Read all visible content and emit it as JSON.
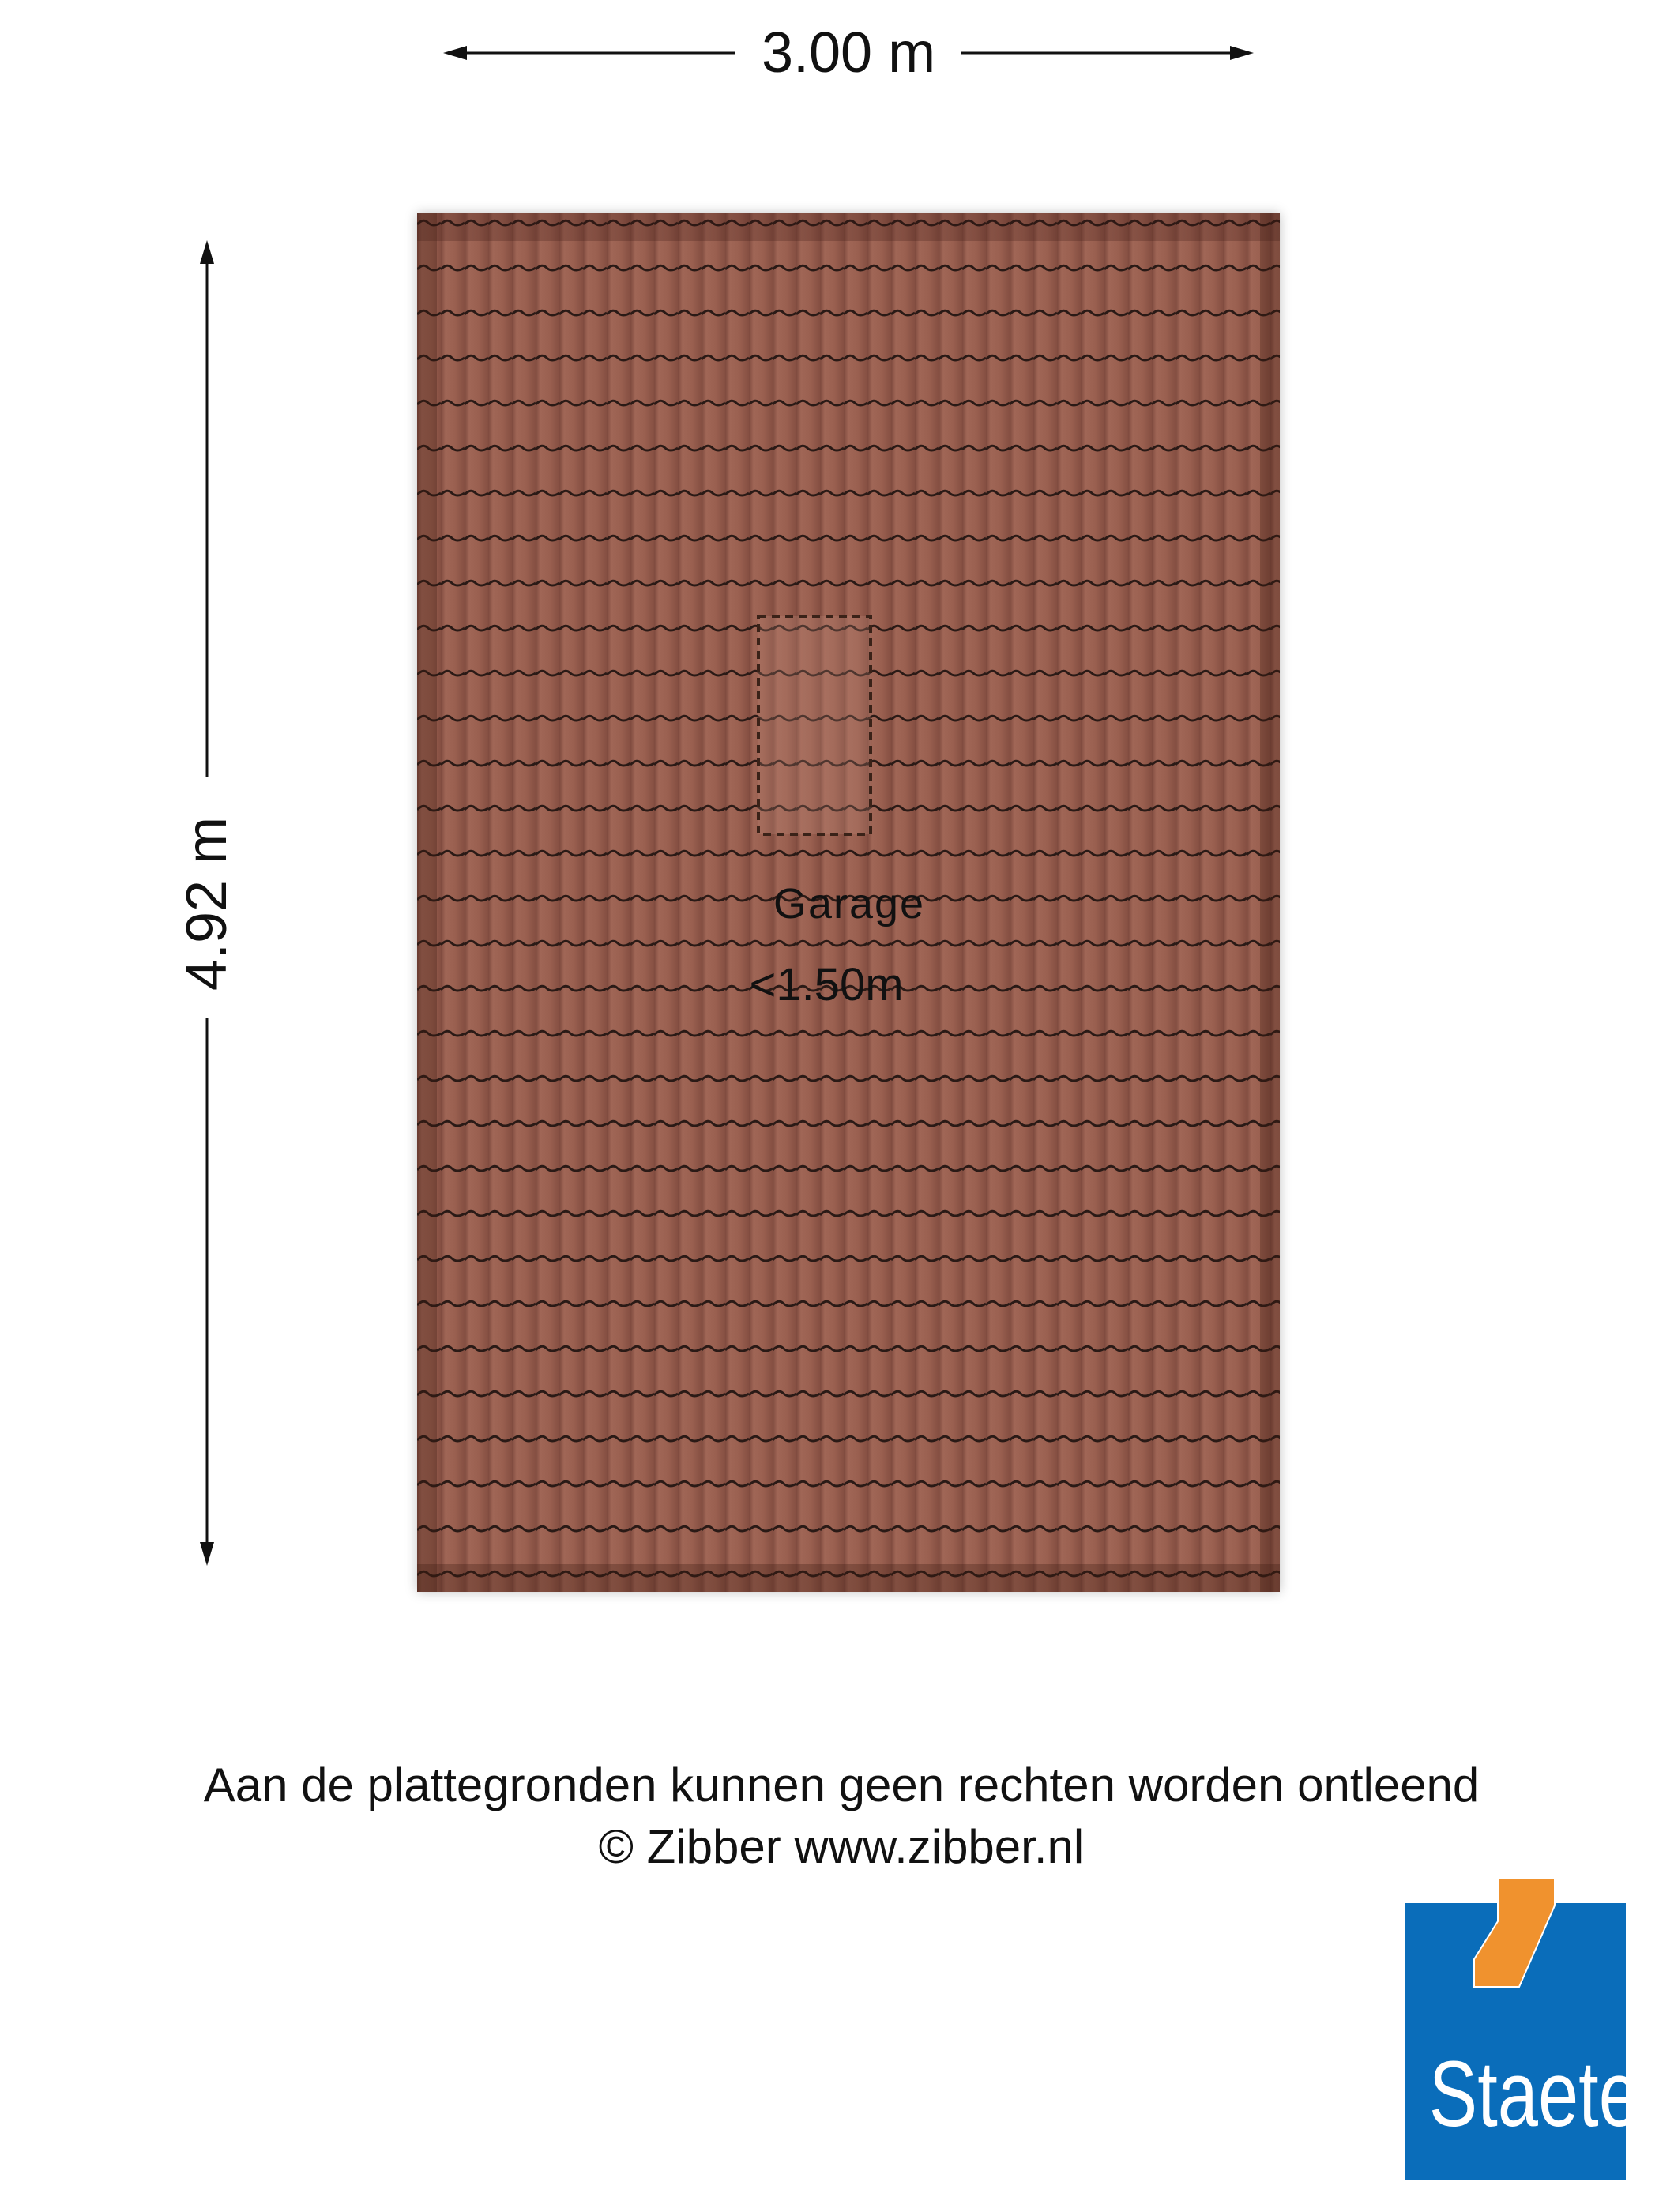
{
  "dimensions": {
    "width": "3.00 m",
    "height": "4.92 m"
  },
  "room": {
    "name": "Garage",
    "note": "<1.50m"
  },
  "disclaimer": "Aan de plattegronden kunnen geen rechten worden ontleend",
  "copyright": "© Zibber www.zibber.nl",
  "logo": {
    "text": "Staete",
    "blue": "#0a6dba",
    "orange": "#f0922e"
  },
  "colors": {
    "roof_tile": "#9a5f50",
    "tile_line": "#2a1a16"
  }
}
